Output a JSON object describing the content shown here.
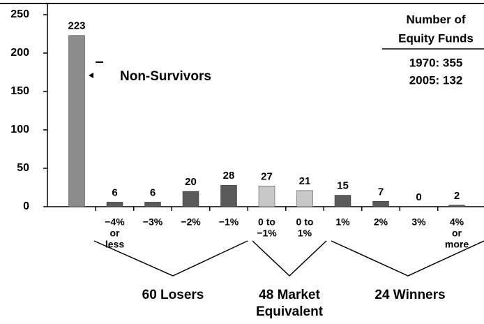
{
  "chart_data": {
    "type": "bar",
    "categories": [
      null,
      [
        "−4%",
        "or",
        "less"
      ],
      [
        "−3%"
      ],
      [
        "−2%"
      ],
      [
        "−1%"
      ],
      [
        "0 to",
        "−1%"
      ],
      [
        "0 to",
        "1%"
      ],
      [
        "1%"
      ],
      [
        "2%"
      ],
      [
        "3%"
      ],
      [
        "4%",
        "or",
        "more"
      ]
    ],
    "values": [
      223,
      6,
      6,
      20,
      28,
      27,
      21,
      15,
      7,
      0,
      2
    ],
    "colors": [
      "#8c8c8c",
      "#5a5a5a",
      "#5a5a5a",
      "#5a5a5a",
      "#5a5a5a",
      "#c8c8c8",
      "#c8c8c8",
      "#5a5a5a",
      "#5a5a5a",
      "#5a5a5a",
      "#5a5a5a"
    ],
    "ylim": [
      0,
      250
    ],
    "yticks": [
      0,
      50,
      100,
      150,
      200,
      250
    ],
    "annotation": "Non-Survivors",
    "box": [
      "Number of",
      "Equity Funds",
      "1970: 355",
      "2005: 132"
    ],
    "groups": [
      [
        "60 Losers"
      ],
      [
        "48 Market",
        "Equivalent"
      ],
      [
        "24 Winners"
      ]
    ]
  }
}
